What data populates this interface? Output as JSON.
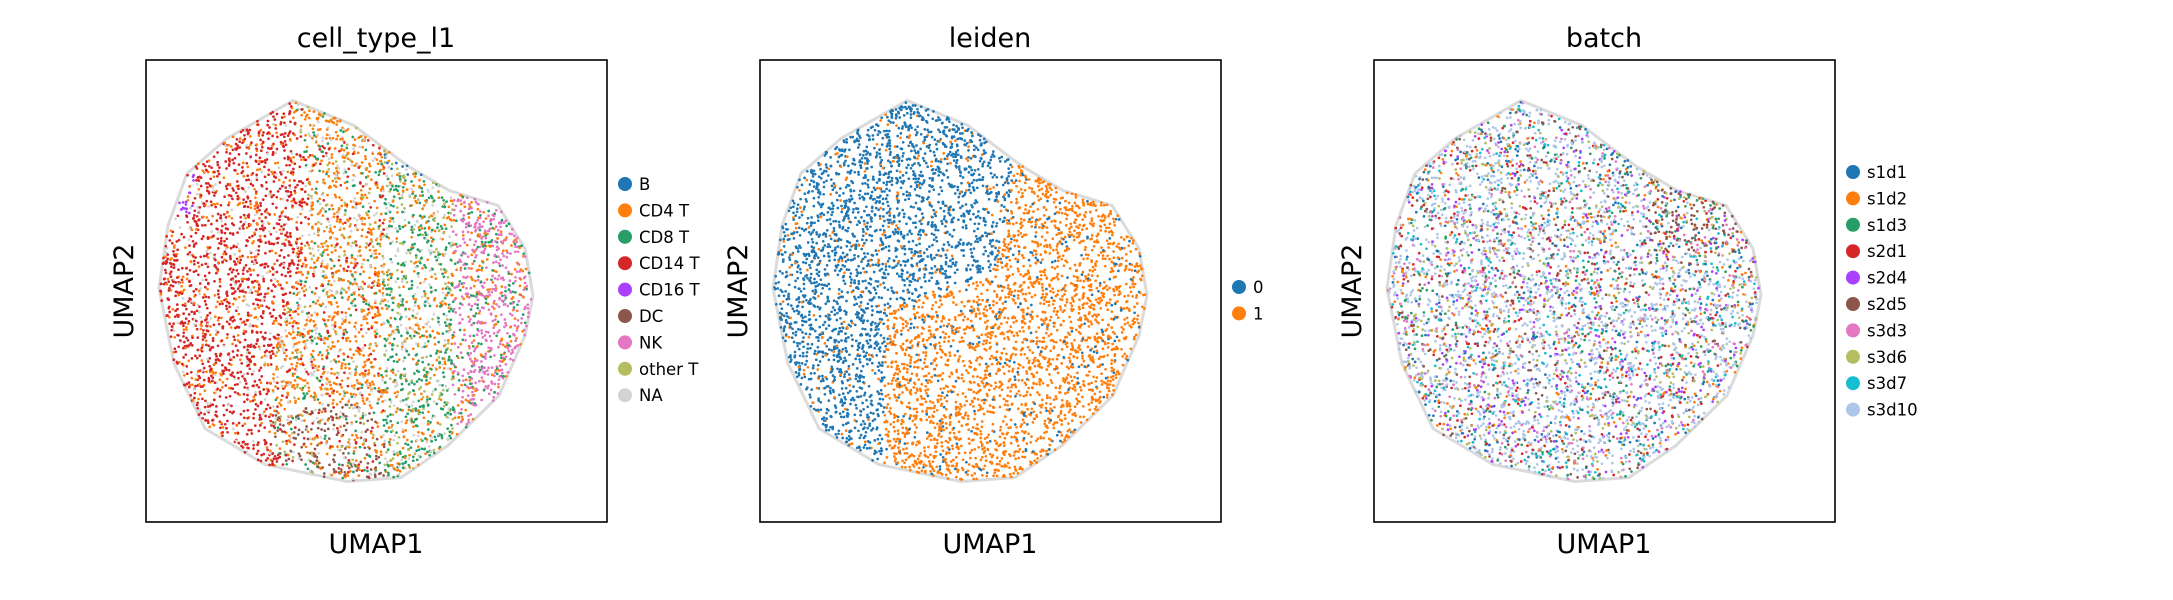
{
  "chart_data": [
    {
      "type": "scatter",
      "title": "cell_type_l1",
      "xlabel": "UMAP1",
      "ylabel": "UMAP2",
      "grid": false,
      "legend_position": "right",
      "legend": [
        {
          "label": "B",
          "color": "#1f77b4"
        },
        {
          "label": "CD4 T",
          "color": "#ff7f0e"
        },
        {
          "label": "CD8 T",
          "color": "#279e68"
        },
        {
          "label": "CD14 T",
          "color": "#d62728"
        },
        {
          "label": "CD16 T",
          "color": "#aa40fc"
        },
        {
          "label": "DC",
          "color": "#8c564b"
        },
        {
          "label": "NK",
          "color": "#e377c2"
        },
        {
          "label": "other T",
          "color": "#b5bd61"
        },
        {
          "label": "NA",
          "color": "#d3d3d3"
        }
      ]
    },
    {
      "type": "scatter",
      "title": "leiden",
      "xlabel": "UMAP1",
      "ylabel": "UMAP2",
      "grid": false,
      "legend_position": "right",
      "legend": [
        {
          "label": "0",
          "color": "#1f77b4"
        },
        {
          "label": "1",
          "color": "#ff7f0e"
        }
      ]
    },
    {
      "type": "scatter",
      "title": "batch",
      "xlabel": "UMAP1",
      "ylabel": "UMAP2",
      "grid": false,
      "legend_position": "right",
      "legend": [
        {
          "label": "s1d1",
          "color": "#1f77b4"
        },
        {
          "label": "s1d2",
          "color": "#ff7f0e"
        },
        {
          "label": "s1d3",
          "color": "#279e68"
        },
        {
          "label": "s2d1",
          "color": "#d62728"
        },
        {
          "label": "s2d4",
          "color": "#aa40fc"
        },
        {
          "label": "s2d5",
          "color": "#8c564b"
        },
        {
          "label": "s3d3",
          "color": "#e377c2"
        },
        {
          "label": "s3d6",
          "color": "#b5bd61"
        },
        {
          "label": "s3d7",
          "color": "#17becf"
        },
        {
          "label": "s3d10",
          "color": "#aec7e8"
        }
      ]
    }
  ]
}
